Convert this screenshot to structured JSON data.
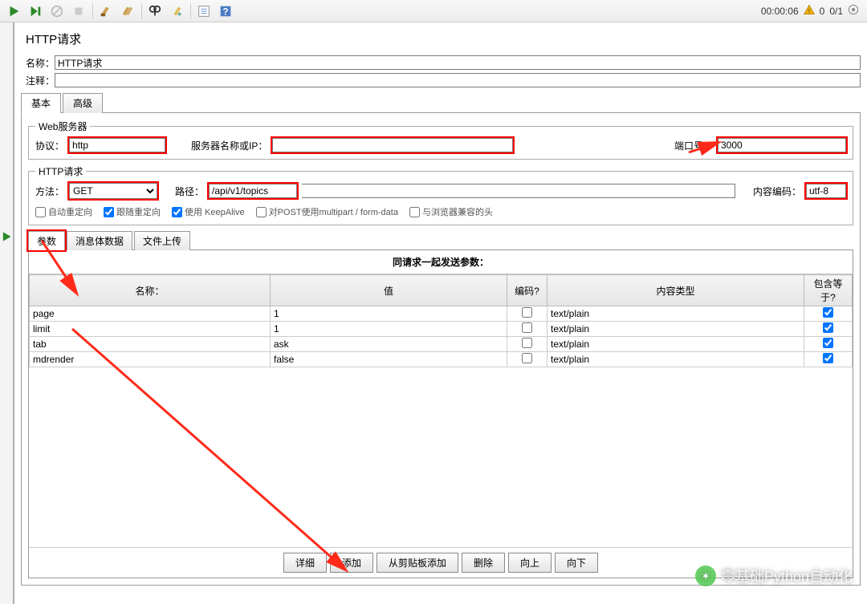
{
  "toolbar_status": {
    "time": "00:00:06",
    "warn_count": "0",
    "run_count": "0/1"
  },
  "title": "HTTP请求",
  "labels": {
    "name": "名称：",
    "comment": "注释："
  },
  "fields": {
    "name": "HTTP请求",
    "comment": ""
  },
  "tabs": {
    "basic": "基本",
    "advanced": "高级"
  },
  "webserver": {
    "legend": "Web服务器",
    "protocol_label": "协议：",
    "protocol": "http",
    "server_label": "服务器名称或IP：",
    "server": "",
    "port_label": "端口号：",
    "port": "3000"
  },
  "request": {
    "legend": "HTTP请求",
    "method_label": "方法：",
    "method": "GET",
    "path_label": "路径：",
    "path": "/api/v1/topics",
    "encoding_label": "内容编码：",
    "encoding": "utf-8"
  },
  "checks": {
    "auto_redirect": "自动重定向",
    "follow_redirect": "跟随重定向",
    "keepalive": "使用 KeepAlive",
    "multipart": "对POST使用multipart / form-data",
    "browser_headers": "与浏览器兼容的头"
  },
  "innerTabs": {
    "params": "参数",
    "body": "消息体数据",
    "upload": "文件上传"
  },
  "paramsTitle": "同请求一起发送参数：",
  "paramsHeaders": {
    "name": "名称：",
    "value": "值",
    "encode": "编码?",
    "ctype": "内容类型",
    "include_eq": "包含等于?"
  },
  "paramsRows": [
    {
      "name": "page",
      "value": "1",
      "encode": false,
      "ctype": "text/plain",
      "eq": true
    },
    {
      "name": "limit",
      "value": "1",
      "encode": false,
      "ctype": "text/plain",
      "eq": true
    },
    {
      "name": "tab",
      "value": "ask",
      "encode": false,
      "ctype": "text/plain",
      "eq": true
    },
    {
      "name": "mdrender",
      "value": "false",
      "encode": false,
      "ctype": "text/plain",
      "eq": true
    }
  ],
  "buttons": {
    "detail": "详细",
    "add": "添加",
    "clipboard": "从剪贴板添加",
    "delete": "删除",
    "up": "向上",
    "down": "向下"
  },
  "watermark": "零基础Python自动化",
  "colors": {
    "highlight": "#ff0000",
    "arrow": "#ff2a1a"
  }
}
